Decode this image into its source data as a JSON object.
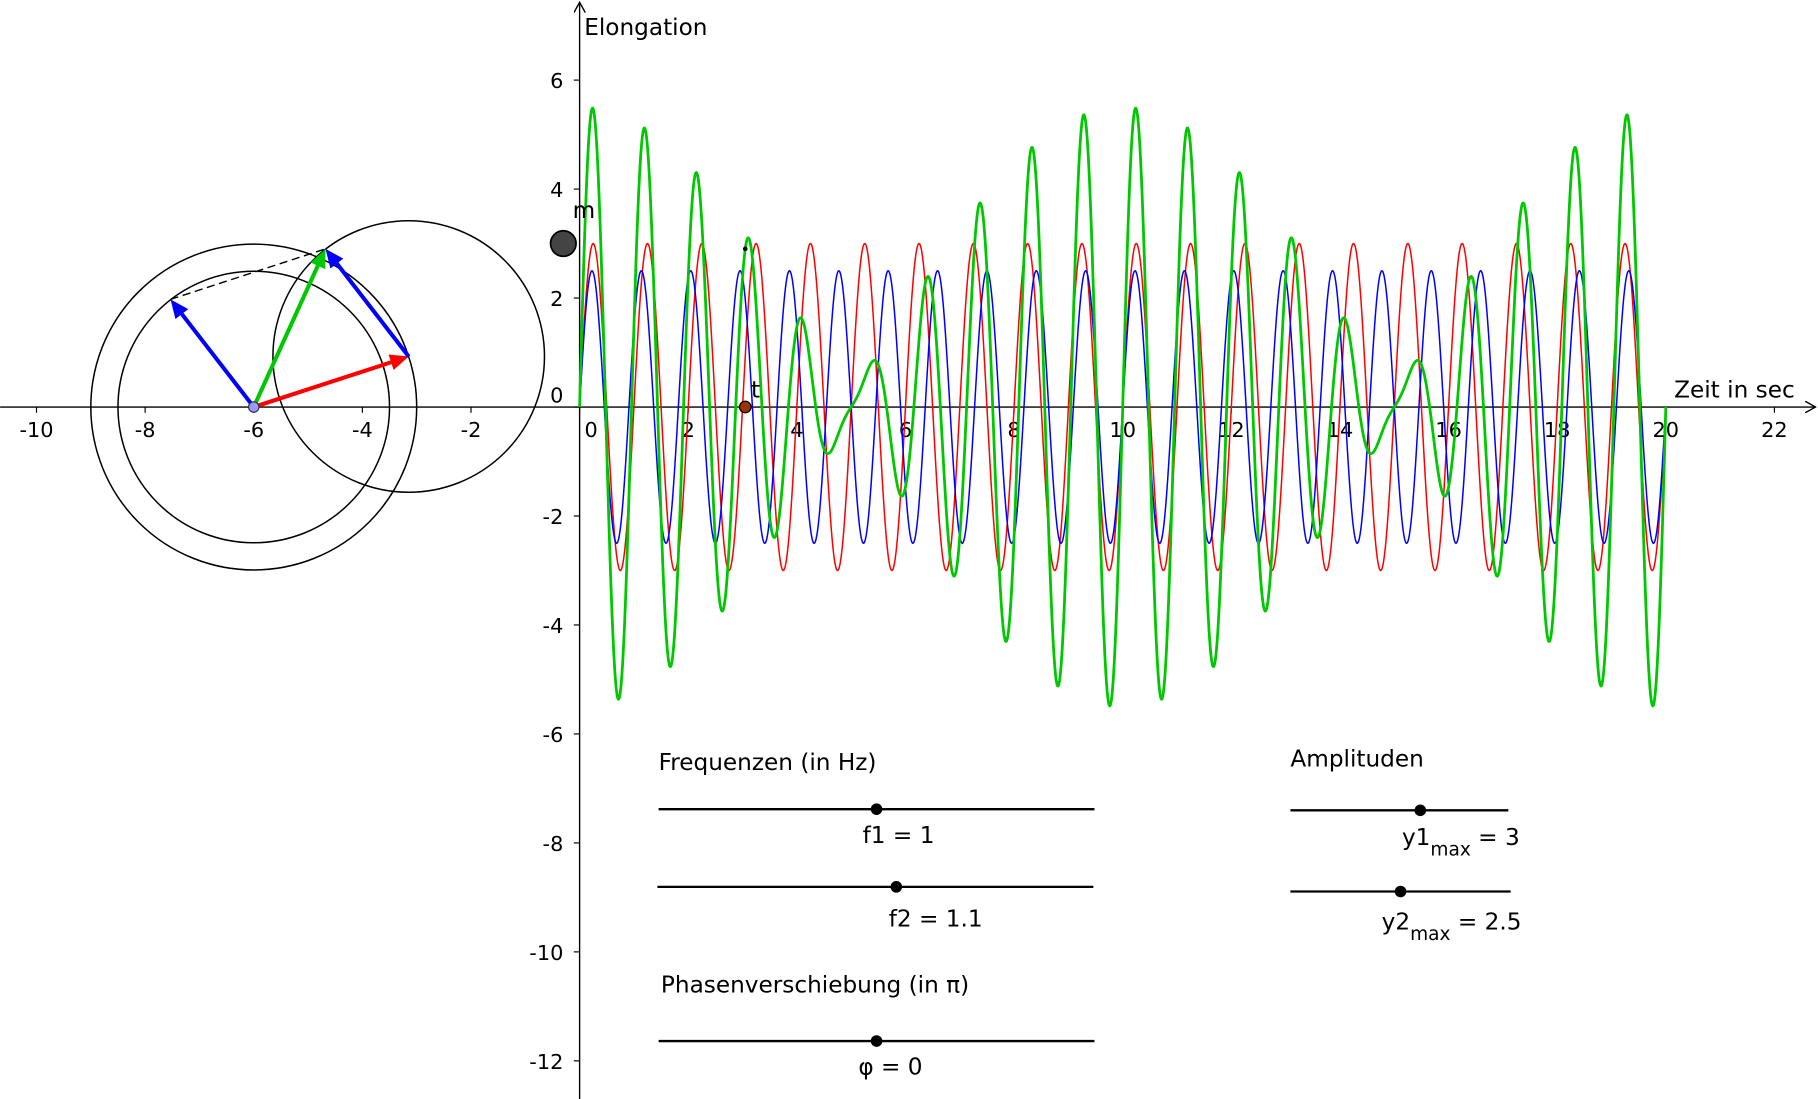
{
  "chart_data": {
    "type": "function",
    "x_label": "Zeit in sec",
    "y_label": "Elongation",
    "xlim": [
      -10.67,
      22.8
    ],
    "ylim": [
      -12.7,
      7.47
    ],
    "xticks": [
      -10,
      -8,
      -6,
      -4,
      -2,
      0,
      2,
      4,
      6,
      8,
      10,
      12,
      14,
      16,
      18,
      20,
      22
    ],
    "yticks": [
      -12,
      -10,
      -8,
      -6,
      -4,
      -2,
      0,
      2,
      4,
      6
    ],
    "domain": [
      0,
      20
    ],
    "series": [
      {
        "color": "#ff0000"
      },
      {
        "color": "#0000ff"
      },
      {
        "color": "#00c800"
      }
    ],
    "t": {
      "label": "t",
      "value": 3.05
    },
    "m": {
      "label": "m",
      "x": -0.3,
      "y": 3
    },
    "phasor_center": {
      "x": -6,
      "y": 0
    }
  },
  "sliders": {
    "groups": [
      "Frequenzen (in Hz)",
      "Amplituden",
      "Phasenverschiebung (in π)"
    ],
    "items": [
      {
        "label": [
          "f1 = 1"
        ],
        "value": 1
      },
      {
        "label": [
          "f2 = 1.1"
        ],
        "value": 1.1
      },
      {
        "label": [
          "φ = 0"
        ],
        "value": 0
      },
      {
        "label": [
          "y1",
          "max",
          " = 3"
        ],
        "value": 3
      },
      {
        "label": [
          "y2",
          "max",
          " = 2.5"
        ],
        "value": 2.5
      }
    ]
  }
}
